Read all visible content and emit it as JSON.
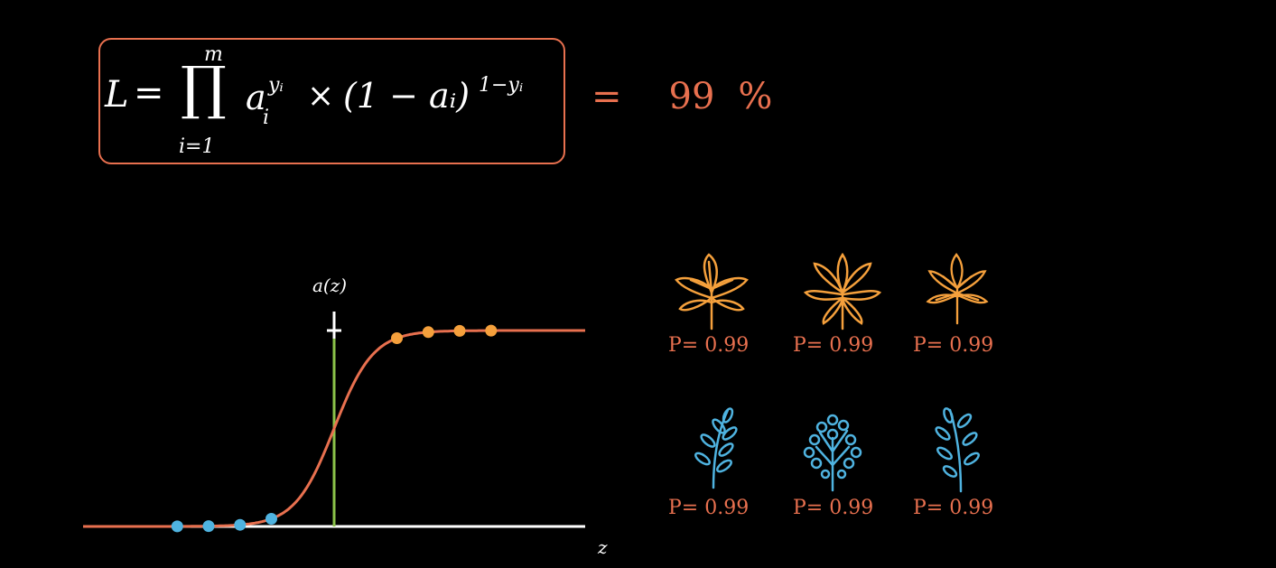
{
  "formula": {
    "lhs": "L",
    "equals": "=",
    "product": "∏",
    "upper_limit": "m",
    "lower_limit": "i=1",
    "base": "a",
    "base_sup": "yᵢ",
    "base_sub": "i",
    "times": "×",
    "second_factor": "(1 − aᵢ)",
    "second_sup": "1−yᵢ"
  },
  "result": {
    "equals": "=",
    "value": "99",
    "unit": "%"
  },
  "colors": {
    "accent": "#e8704f",
    "orange": "#f5a03c",
    "blue": "#4fb3e0",
    "threshold": "#8bc34a",
    "axis": "#ffffff"
  },
  "chart_data": {
    "type": "line",
    "xlabel": "z",
    "ylabel": "a(z)",
    "ylim": [
      0,
      1
    ],
    "xlim": [
      -8,
      8
    ],
    "threshold_x": 0,
    "curve": "sigmoid",
    "points_class0": [
      -5,
      -4,
      -3,
      -2
    ],
    "points_class1": [
      2,
      3,
      4,
      5
    ]
  },
  "samples": {
    "row1": [
      {
        "icon": "orange-leaf-icon",
        "label": "P= 0.99"
      },
      {
        "icon": "orange-leaf-icon",
        "label": "P= 0.99"
      },
      {
        "icon": "orange-leaf-icon",
        "label": "P= 0.99"
      }
    ],
    "row2": [
      {
        "icon": "blue-leaf-icon",
        "label": "P= 0.99"
      },
      {
        "icon": "blue-leaf-icon",
        "label": "P= 0.99"
      },
      {
        "icon": "blue-leaf-icon",
        "label": "P= 0.99"
      }
    ]
  }
}
